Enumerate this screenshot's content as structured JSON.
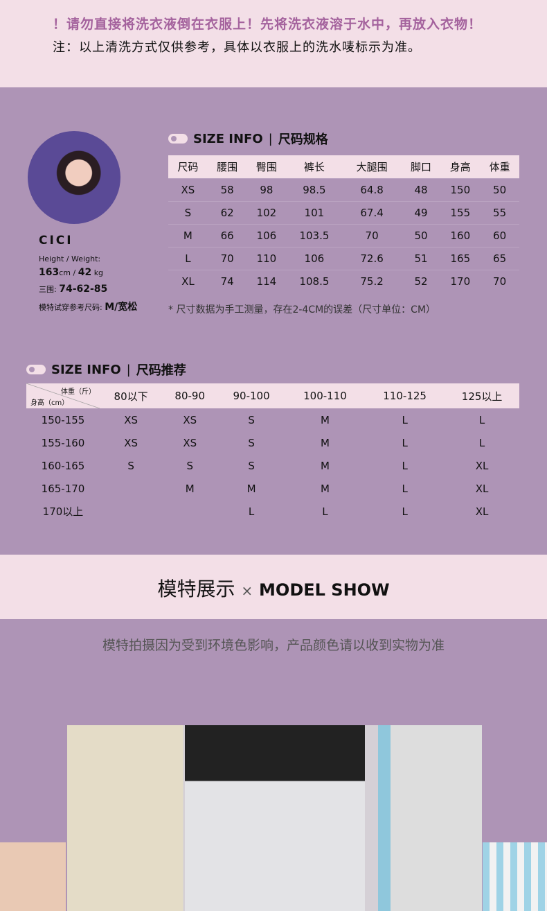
{
  "notice": {
    "warning": "！请勿直接将洗衣液倒在衣服上！先将洗衣液溶于水中，再放入衣物！",
    "note": "注：以上清洗方式仅供参考，具体以衣服上的洗水唛标示为准。"
  },
  "model": {
    "name": "CICI",
    "hw_label": "Height / Weight:",
    "height": "163",
    "height_unit": "cm /",
    "weight": "42",
    "weight_unit": "kg",
    "measure_label": "三围:",
    "measure": "74-62-85",
    "size_label": "模特试穿参考尺码:",
    "size": "M/宽松"
  },
  "size_info": {
    "title_en": "SIZE INFO",
    "title_cn": "尺码规格",
    "headers": [
      "尺码",
      "腰围",
      "臀围",
      "裤长",
      "大腿围",
      "脚口",
      "身高",
      "体重"
    ],
    "rows": [
      [
        "XS",
        "58",
        "98",
        "98.5",
        "64.8",
        "48",
        "150",
        "50"
      ],
      [
        "S",
        "62",
        "102",
        "101",
        "67.4",
        "49",
        "155",
        "55"
      ],
      [
        "M",
        "66",
        "106",
        "103.5",
        "70",
        "50",
        "160",
        "60"
      ],
      [
        "L",
        "70",
        "110",
        "106",
        "72.6",
        "51",
        "165",
        "65"
      ],
      [
        "XL",
        "74",
        "114",
        "108.5",
        "75.2",
        "52",
        "170",
        "70"
      ]
    ],
    "footnote": "* 尺寸数据为手工测量，存在2-4CM的误差（尺寸单位：CM）"
  },
  "size_rec": {
    "title_en": "SIZE INFO",
    "title_cn": "尺码推荐",
    "corner_top": "体重（斤）",
    "corner_bottom": "身高（cm）",
    "headers": [
      "80以下",
      "80-90",
      "90-100",
      "100-110",
      "110-125",
      "125以上"
    ],
    "rows": [
      [
        "150-155",
        "XS",
        "XS",
        "S",
        "M",
        "L",
        "L"
      ],
      [
        "155-160",
        "XS",
        "XS",
        "S",
        "M",
        "L",
        "L"
      ],
      [
        "160-165",
        "S",
        "S",
        "S",
        "M",
        "L",
        "XL"
      ],
      [
        "165-170",
        "",
        "M",
        "M",
        "M",
        "L",
        "XL"
      ],
      [
        "170以上",
        "",
        "",
        "L",
        "L",
        "L",
        "XL"
      ]
    ]
  },
  "model_show": {
    "title_cn": "模特展示",
    "sep": "×",
    "title_en": "MODEL SHOW",
    "note": "模特拍摄因为受到环境色影响，产品颜色请以收到实物为准"
  }
}
